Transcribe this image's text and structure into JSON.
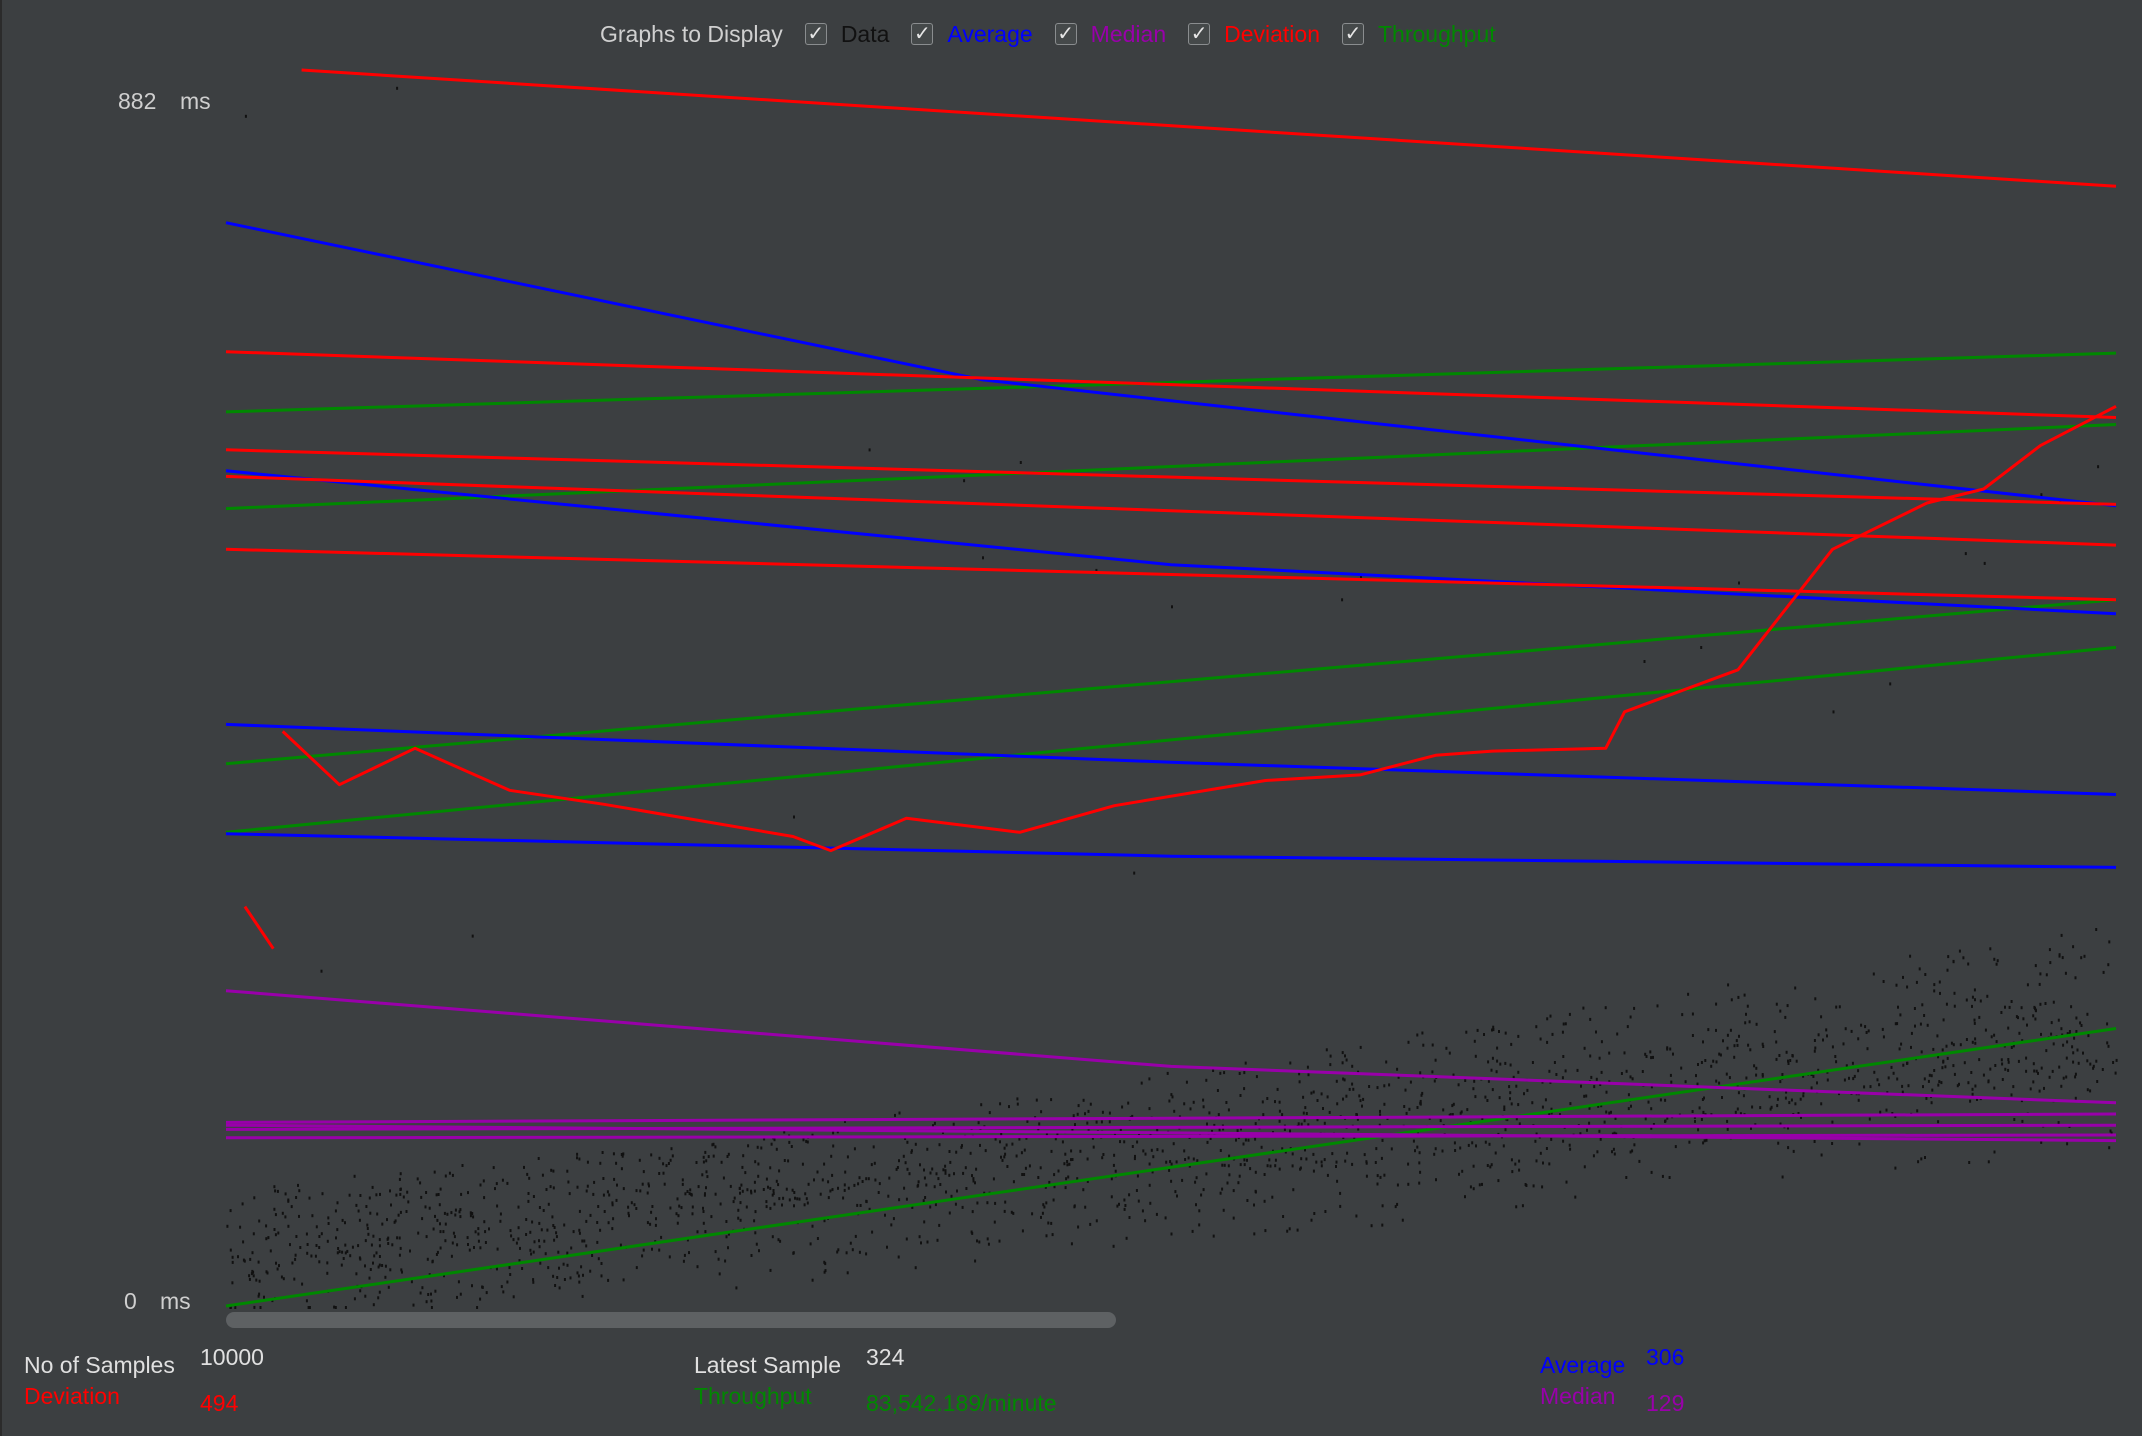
{
  "legend": {
    "title": "Graphs to Display",
    "items": [
      {
        "key": "data",
        "label": "Data",
        "color": "#1a1a1a",
        "checked": true
      },
      {
        "key": "average",
        "label": "Average",
        "color": "#0000ff",
        "checked": true
      },
      {
        "key": "median",
        "label": "Median",
        "color": "#9900aa",
        "checked": true
      },
      {
        "key": "deviation",
        "label": "Deviation",
        "color": "#ff0000",
        "checked": true
      },
      {
        "key": "throughput",
        "label": "Throughput",
        "color": "#008800",
        "checked": true
      }
    ],
    "check_glyph": "✓"
  },
  "axis": {
    "y_max_value": "882",
    "y_min_value": "0",
    "unit": "ms"
  },
  "stats": {
    "no_of_samples_label": "No of Samples",
    "no_of_samples_value": "10000",
    "latest_sample_label": "Latest Sample",
    "latest_sample_value": "324",
    "average_label": "Average",
    "average_value": "306",
    "deviation_label": "Deviation",
    "deviation_value": "494",
    "throughput_label": "Throughput",
    "throughput_value": "83,542.189/minute",
    "median_label": "Median",
    "median_value": "129"
  },
  "chart_data": {
    "type": "line",
    "ylim": [
      0,
      882
    ],
    "xlim": [
      0,
      1
    ],
    "series": [
      {
        "name": "Deviation",
        "color": "#ff0000",
        "lines": [
          [
            [
              0.04,
              882
            ],
            [
              1.0,
              799
            ]
          ],
          [
            [
              0.0,
              681
            ],
            [
              1.0,
              634
            ]
          ],
          [
            [
              0.0,
              611
            ],
            [
              1.0,
              572
            ]
          ],
          [
            [
              0.0,
              592
            ],
            [
              1.0,
              543
            ]
          ],
          [
            [
              0.0,
              540
            ],
            [
              1.0,
              504
            ]
          ],
          [
            [
              0.03,
              410
            ],
            [
              0.06,
              372
            ],
            [
              0.1,
              398
            ],
            [
              0.15,
              368
            ],
            [
              0.2,
              358
            ],
            [
              0.3,
              335
            ],
            [
              0.32,
              325
            ],
            [
              0.36,
              348
            ],
            [
              0.42,
              338
            ],
            [
              0.47,
              357
            ],
            [
              0.55,
              375
            ],
            [
              0.6,
              379
            ],
            [
              0.64,
              393
            ],
            [
              0.67,
              396
            ],
            [
              0.73,
              398
            ],
            [
              0.74,
              424
            ],
            [
              0.8,
              454
            ],
            [
              0.85,
              540
            ],
            [
              0.9,
              573
            ],
            [
              0.93,
              583
            ],
            [
              0.96,
              614
            ],
            [
              1.0,
              642
            ]
          ],
          [
            [
              0.01,
              285
            ],
            [
              0.025,
              255
            ]
          ]
        ]
      },
      {
        "name": "Average",
        "color": "#0000ff",
        "lines": [
          [
            [
              0.0,
              773
            ],
            [
              0.4,
              661
            ],
            [
              1.0,
              571
            ]
          ],
          [
            [
              0.0,
              596
            ],
            [
              0.5,
              529
            ],
            [
              1.0,
              494
            ]
          ],
          [
            [
              0.0,
              415
            ],
            [
              0.5,
              388
            ],
            [
              1.0,
              365
            ]
          ],
          [
            [
              0.0,
              337
            ],
            [
              0.5,
              321
            ],
            [
              1.0,
              313
            ]
          ]
        ]
      },
      {
        "name": "Median",
        "color": "#9900aa",
        "lines": [
          [
            [
              0.0,
              225
            ],
            [
              0.5,
              171
            ],
            [
              1.0,
              145
            ]
          ],
          [
            [
              0.0,
              129
            ],
            [
              1.0,
              118
            ]
          ],
          [
            [
              0.0,
              120
            ],
            [
              1.0,
              122
            ]
          ],
          [
            [
              0.0,
              126
            ],
            [
              1.0,
              129
            ]
          ],
          [
            [
              0.0,
              131
            ],
            [
              1.0,
              137
            ]
          ]
        ]
      },
      {
        "name": "Throughput",
        "color": "#008800",
        "lines": [
          [
            [
              0.0,
              638
            ],
            [
              1.0,
              680
            ]
          ],
          [
            [
              0.0,
              569
            ],
            [
              1.0,
              629
            ]
          ],
          [
            [
              0.0,
              387
            ],
            [
              1.0,
              504
            ]
          ],
          [
            [
              0.0,
              338
            ],
            [
              1.0,
              470
            ]
          ],
          [
            [
              0.0,
              0
            ],
            [
              1.0,
              198
            ]
          ]
        ]
      },
      {
        "name": "Data",
        "color": "#111111",
        "type": "scatter",
        "bands": [
          [
            0.0,
            42,
            0.5,
            140,
            1.0,
            246
          ],
          [
            0.0,
            16,
            0.5,
            92,
            1.0,
            186
          ],
          [
            0.0,
            60,
            0.6,
            130,
            1.0,
            196
          ],
          [
            0.0,
            18,
            1.0,
            150
          ]
        ],
        "outliers": [
          [
            0.01,
            850
          ],
          [
            0.09,
            870
          ],
          [
            0.34,
            612
          ],
          [
            0.39,
            590
          ],
          [
            0.4,
            535
          ],
          [
            0.42,
            603
          ],
          [
            0.46,
            526
          ],
          [
            0.5,
            500
          ],
          [
            0.59,
            505
          ],
          [
            0.6,
            521
          ],
          [
            0.75,
            461
          ],
          [
            0.78,
            471
          ],
          [
            0.8,
            517
          ],
          [
            0.85,
            425
          ],
          [
            0.92,
            538
          ],
          [
            0.93,
            531
          ],
          [
            0.96,
            580
          ],
          [
            0.97,
            576
          ],
          [
            0.88,
            445
          ],
          [
            0.99,
            600
          ],
          [
            0.13,
            265
          ],
          [
            0.3,
            350
          ],
          [
            0.48,
            310
          ],
          [
            0.05,
            240
          ]
        ]
      }
    ]
  }
}
